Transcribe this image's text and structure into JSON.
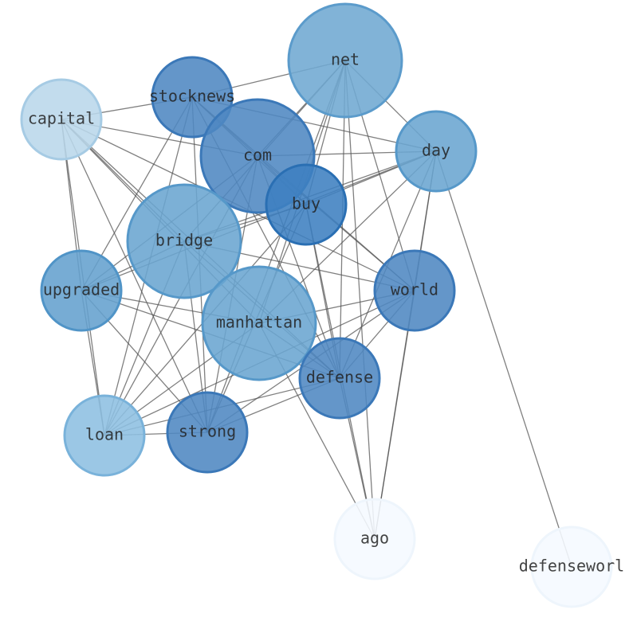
{
  "nodes": [
    {
      "label": "net"
    },
    {
      "label": "stocknews"
    },
    {
      "label": "capital"
    },
    {
      "label": "com"
    },
    {
      "label": "day"
    },
    {
      "label": "buy"
    },
    {
      "label": "bridge"
    },
    {
      "label": "upgraded"
    },
    {
      "label": "world"
    },
    {
      "label": "manhattan"
    },
    {
      "label": "defense"
    },
    {
      "label": "loan"
    },
    {
      "label": "strong"
    },
    {
      "label": "ago"
    },
    {
      "label": "defenseworl"
    }
  ]
}
